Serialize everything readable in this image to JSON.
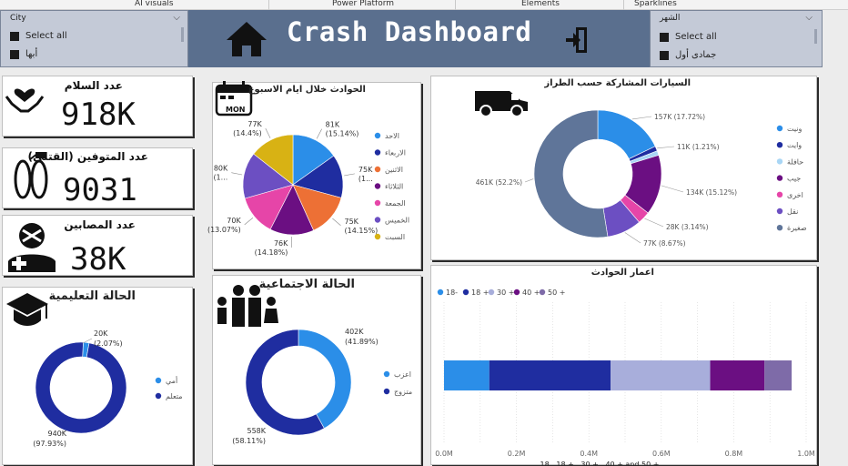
{
  "ribbon": {
    "tabs": [
      "AI visuals",
      "Power Platform",
      "Elements",
      "Sparklines"
    ]
  },
  "header": {
    "title": "Crash Dashboard"
  },
  "slicer_city": {
    "title": "City",
    "items": [
      "Select all",
      "أبها"
    ]
  },
  "slicer_month": {
    "title": "الشهر",
    "items": [
      "Select all",
      "جمادى أول"
    ]
  },
  "kpis": [
    {
      "label": "عدد السلام",
      "value": "918K",
      "icon": "heart-hands-icon"
    },
    {
      "label": "عدد المتوفين (القتلى)",
      "value": "9031",
      "icon": "feet-tag-icon"
    },
    {
      "label": "عدد المصابين",
      "value": "38K",
      "icon": "injured-person-icon"
    }
  ],
  "colors": {
    "c1": "#2b8ee8",
    "c2": "#1f2da0",
    "c3": "#ed7035",
    "c4": "#6b0f82",
    "c5": "#e645a8",
    "c6": "#6c4fc2",
    "c7": "#d8b214",
    "header": "#5a6f8e",
    "slate": "#5f7599",
    "lavender": "#a8aedb",
    "violet": "#7e6ba8"
  },
  "weekday_chart": {
    "title": "الحوادث خلال ايام الاسبوع",
    "type": "pie",
    "slices": [
      {
        "name": "الاحد",
        "value": 81,
        "label": "81K",
        "pct": "(15.14%)",
        "color": "#2b8ee8"
      },
      {
        "name": "الاربعاء",
        "value": 75,
        "label": "75K",
        "pct": "(1...",
        "color": "#1f2da0"
      },
      {
        "name": "الاثنين",
        "value": 75,
        "label": "75K",
        "pct": "(14.15%)",
        "color": "#ed7035"
      },
      {
        "name": "الثلاثاء",
        "value": 76,
        "label": "76K",
        "pct": "(14.18%)",
        "color": "#6b0f82"
      },
      {
        "name": "الجمعة",
        "value": 70,
        "label": "70K",
        "pct": "(13.07%)",
        "color": "#e645a8"
      },
      {
        "name": "الخميس",
        "value": 80,
        "label": "80K",
        "pct": "(1...",
        "color": "#6c4fc2"
      },
      {
        "name": "السبت",
        "value": 77,
        "label": "77K",
        "pct": "(14.4%)",
        "color": "#d8b214"
      }
    ]
  },
  "vehicle_chart": {
    "title": "السيارات المشاركة حسب الطراز",
    "type": "donut",
    "slices": [
      {
        "name": "ونيت",
        "value": 157,
        "label": "157K (17.72%)",
        "color": "#2b8ee8"
      },
      {
        "name": "وايت",
        "value": 11,
        "label": "11K (1.21%)",
        "color": "#1f2da0"
      },
      {
        "name": "حافلة",
        "value": 10,
        "label": "",
        "color": "#a9d6f5"
      },
      {
        "name": "جيب",
        "value": 134,
        "label": "134K (15.12%)",
        "color": "#6b0f82"
      },
      {
        "name": "اخرى",
        "value": 28,
        "label": "28K (3.14%)",
        "color": "#e645a8"
      },
      {
        "name": "نقل",
        "value": 77,
        "label": "77K (8.67%)",
        "color": "#6c4fc2"
      },
      {
        "name": "صغيرة",
        "value": 461,
        "label": "461K (52.2%)",
        "color": "#5f7599"
      }
    ]
  },
  "education_chart": {
    "title": "الحالة التعليمية",
    "type": "donut",
    "slices": [
      {
        "name": "أمي",
        "value": 20,
        "label": "20K",
        "pct": "(2.07%)",
        "color": "#2b8ee8"
      },
      {
        "name": "متعلم",
        "value": 940,
        "label": "940K",
        "pct": "(97.93%)",
        "color": "#1f2da0"
      }
    ]
  },
  "social_chart": {
    "title": "الحالة الاجتماعية",
    "type": "donut",
    "slices": [
      {
        "name": "اعزب",
        "value": 402,
        "label": "402K",
        "pct": "(41.89%)",
        "color": "#2b8ee8"
      },
      {
        "name": "متزوج",
        "value": 558,
        "label": "558K",
        "pct": "(58.11%)",
        "color": "#1f2da0"
      }
    ]
  },
  "age_chart": {
    "title": "اعمار الحوادث",
    "type": "bar",
    "legend": [
      "18-",
      "18 +",
      "30 +",
      "40 +",
      "50 +"
    ],
    "segments": [
      {
        "name": "18-",
        "value": 0.125,
        "color": "#2b8ee8"
      },
      {
        "name": "18 +",
        "value": 0.335,
        "color": "#1f2da0"
      },
      {
        "name": "30 +",
        "value": 0.275,
        "color": "#a8aedb"
      },
      {
        "name": "40 +",
        "value": 0.15,
        "color": "#6b0f82"
      },
      {
        "name": "50 +",
        "value": 0.075,
        "color": "#7e6ba8"
      }
    ],
    "xlim": [
      0,
      1.0
    ],
    "ticks": [
      "0.0M",
      "0.2M",
      "0.4M",
      "0.6M",
      "0.8M",
      "1.0M"
    ],
    "bottom_label": "18 , 18 + , 30 + , 40 + and 50 +"
  }
}
